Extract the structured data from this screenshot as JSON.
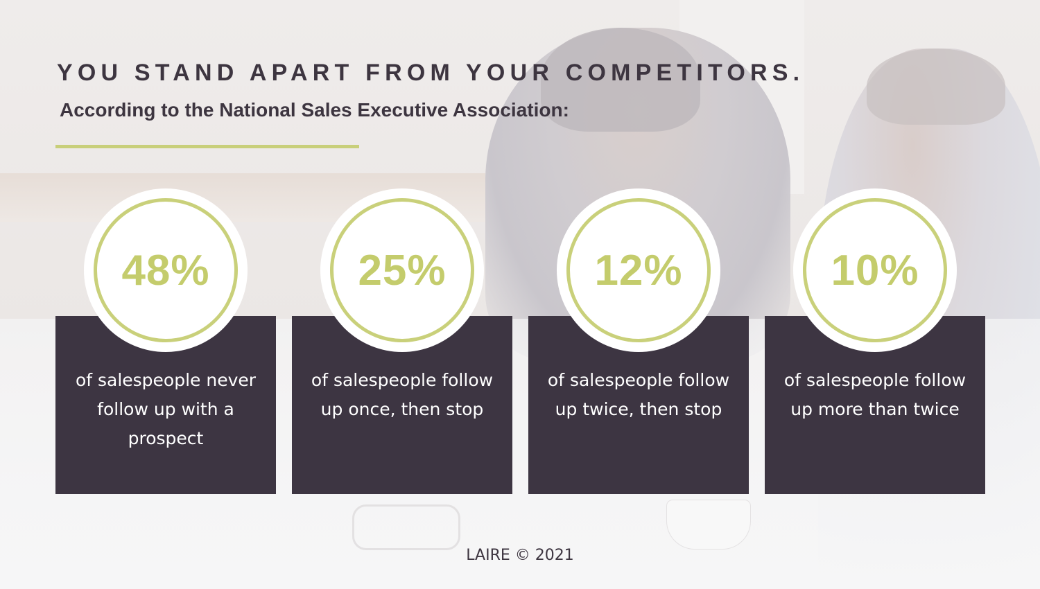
{
  "header": {
    "title": "YOU STAND APART FROM YOUR COMPETITORS.",
    "subtitle": "According to the National Sales Executive Association:"
  },
  "stats": [
    {
      "percent": "48%",
      "text": "of salespeople never follow up with a prospect"
    },
    {
      "percent": "25%",
      "text": "of salespeople follow up once, then stop"
    },
    {
      "percent": "12%",
      "text": "of salespeople follow up twice, then stop"
    },
    {
      "percent": "10%",
      "text": "of salespeople follow up more than twice"
    }
  ],
  "footer": {
    "copyright": "LAIRE © 2021"
  },
  "colors": {
    "accent": "#c4cc6c",
    "card": "#3d3542",
    "text_dark": "#3d3540"
  }
}
